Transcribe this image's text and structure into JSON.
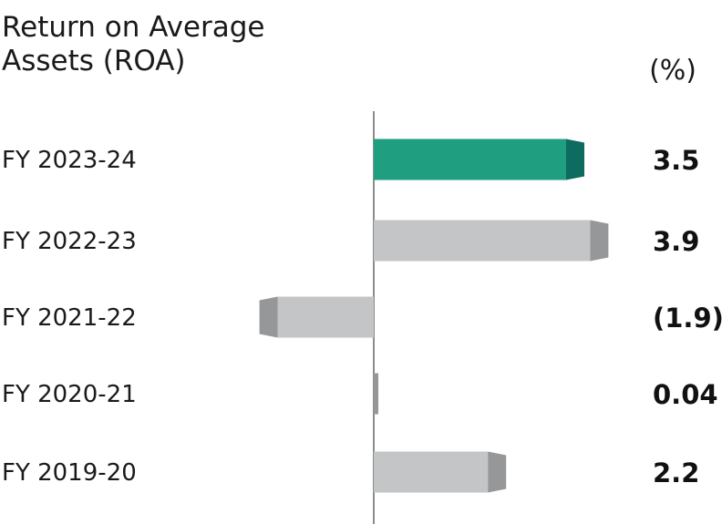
{
  "chart_data": {
    "type": "bar",
    "orientation": "horizontal",
    "title_lines": [
      "Return on Average",
      "Assets (ROA)"
    ],
    "unit": "(%)",
    "categories": [
      "FY 2023-24",
      "FY 2022-23",
      "FY 2021-22",
      "FY 2020-21",
      "FY 2019-20"
    ],
    "values": [
      3.5,
      3.9,
      -1.9,
      0.04,
      2.2
    ],
    "value_labels": [
      "3.5",
      "3.9",
      "(1.9)",
      "0.04",
      "2.2"
    ],
    "highlight_index": 0,
    "xlim": [
      -2.3,
      4.0
    ],
    "grid": false,
    "colors": {
      "highlight": "#1f9e80",
      "highlight_cap": "#0e6b60",
      "bar": "#c4c5c6",
      "bar_cap": "#969798",
      "axis": "#666666"
    }
  }
}
